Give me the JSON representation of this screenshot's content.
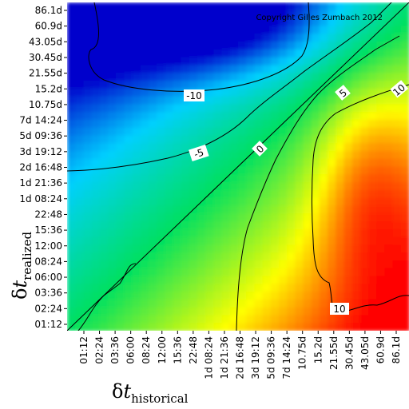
{
  "chart_data": {
    "type": "heatmap",
    "title": "",
    "copyright": "Copyright Gilles Zumbach 2012",
    "xlabel": {
      "symbol": "δ",
      "variable": "t",
      "subscript": "historical"
    },
    "ylabel": {
      "symbol": "δ",
      "variable": "t",
      "subscript": "realized"
    },
    "x_ticks": [
      "01:12",
      "02:24",
      "03:36",
      "06:00",
      "08:24",
      "12:00",
      "15:36",
      "22:48",
      "1d 08:24",
      "1d 21:36",
      "2d 16:48",
      "3d 19:12",
      "5d 09:36",
      "7d 14:24",
      "10.75d",
      "15.2d",
      "21.55d",
      "30.45d",
      "43.05d",
      "60.9d",
      "86.1d"
    ],
    "y_ticks": [
      "01:12",
      "02:24",
      "03:36",
      "06:00",
      "08:24",
      "12:00",
      "15:36",
      "22:48",
      "1d 08:24",
      "1d 21:36",
      "2d 16:48",
      "3d 19:12",
      "5d 09:36",
      "7d 14:24",
      "10.75d",
      "15.2d",
      "21.55d",
      "30.45d",
      "43.05d",
      "60.9d",
      "86.1d"
    ],
    "contour_levels": [
      -10,
      -5,
      0,
      5,
      10
    ],
    "contour_labels": [
      "-10",
      "-5",
      "0",
      "5",
      "10",
      "10"
    ],
    "colorscale": [
      "#0000cc",
      "#00d0ff",
      "#00e060",
      "#ffff00",
      "#ff0000"
    ],
    "grid": false,
    "legend": "none"
  }
}
